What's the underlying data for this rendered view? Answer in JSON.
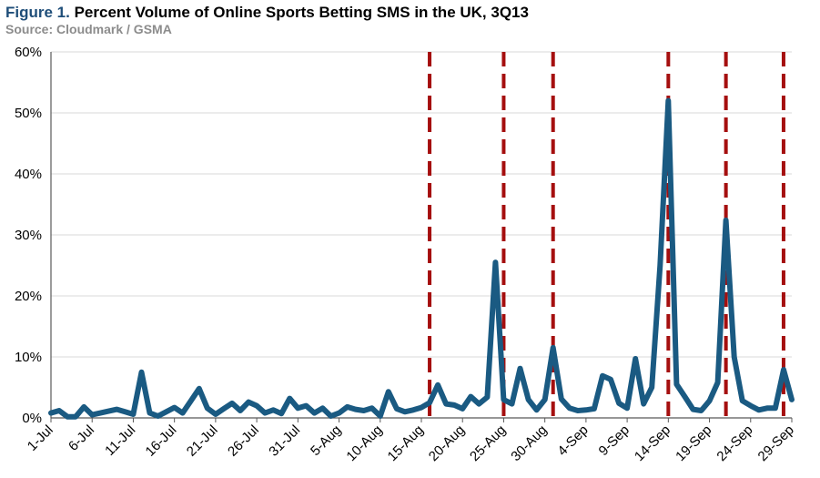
{
  "figure_label": "Figure 1.",
  "title": "Percent Volume of Online Sports Betting SMS in the UK, 3Q13",
  "source": "Source: Cloudmark / GSMA",
  "colors": {
    "line": "#1a5a82",
    "marker_line": "#a50f0f",
    "grid": "#d9d9d9",
    "axis": "#595959",
    "title_accent": "#1f4e79"
  },
  "chart_data": {
    "type": "line",
    "title": "Percent Volume of Online Sports Betting SMS in the UK, 3Q13",
    "xlabel": "",
    "ylabel": "",
    "ylim": [
      0,
      60
    ],
    "y_ticks": [
      "0%",
      "10%",
      "20%",
      "30%",
      "40%",
      "50%",
      "60%"
    ],
    "x_tick_labels": [
      "1-Jul",
      "6-Jul",
      "11-Jul",
      "16-Jul",
      "21-Jul",
      "26-Jul",
      "31-Jul",
      "5-Aug",
      "10-Aug",
      "15-Aug",
      "20-Aug",
      "25-Aug",
      "30-Aug",
      "4-Sep",
      "9-Sep",
      "14-Sep",
      "19-Sep",
      "24-Sep",
      "29-Sep"
    ],
    "grid": true,
    "x_start": "1-Jul",
    "x_end": "30-Sep",
    "series": [
      {
        "values": [
          0.8,
          1.2,
          0.2,
          0.2,
          1.8,
          0.5,
          0.8,
          1.1,
          1.4,
          1.0,
          0.6,
          7.5,
          0.8,
          0.3,
          1.0,
          1.7,
          0.8,
          2.8,
          4.8,
          1.6,
          0.6,
          1.5,
          2.4,
          1.2,
          2.6,
          2.0,
          0.8,
          1.3,
          0.7,
          3.2,
          1.6,
          2.0,
          0.8,
          1.6,
          0.3,
          0.8,
          1.8,
          1.4,
          1.2,
          1.6,
          0.3,
          4.3,
          1.5,
          1.0,
          1.3,
          1.7,
          2.5,
          5.4,
          2.3,
          2.1,
          1.5,
          3.5,
          2.3,
          3.4,
          25.5,
          3.0,
          2.3,
          8.1,
          3.0,
          1.3,
          3.0,
          11.5,
          3.1,
          1.6,
          1.2,
          1.3,
          1.5,
          6.9,
          6.3,
          2.4,
          1.6,
          9.7,
          2.3,
          5.0,
          25.0,
          52.0,
          5.5,
          3.5,
          1.4,
          1.2,
          2.8,
          5.8,
          32.4,
          10.0,
          2.8,
          2.0,
          1.3,
          1.6,
          1.6,
          7.9,
          3.0
        ]
      }
    ],
    "event_marker_days": [
      "16-Aug",
      "25-Aug",
      "31-Aug",
      "14-Sep",
      "21-Sep",
      "28-Sep"
    ]
  }
}
